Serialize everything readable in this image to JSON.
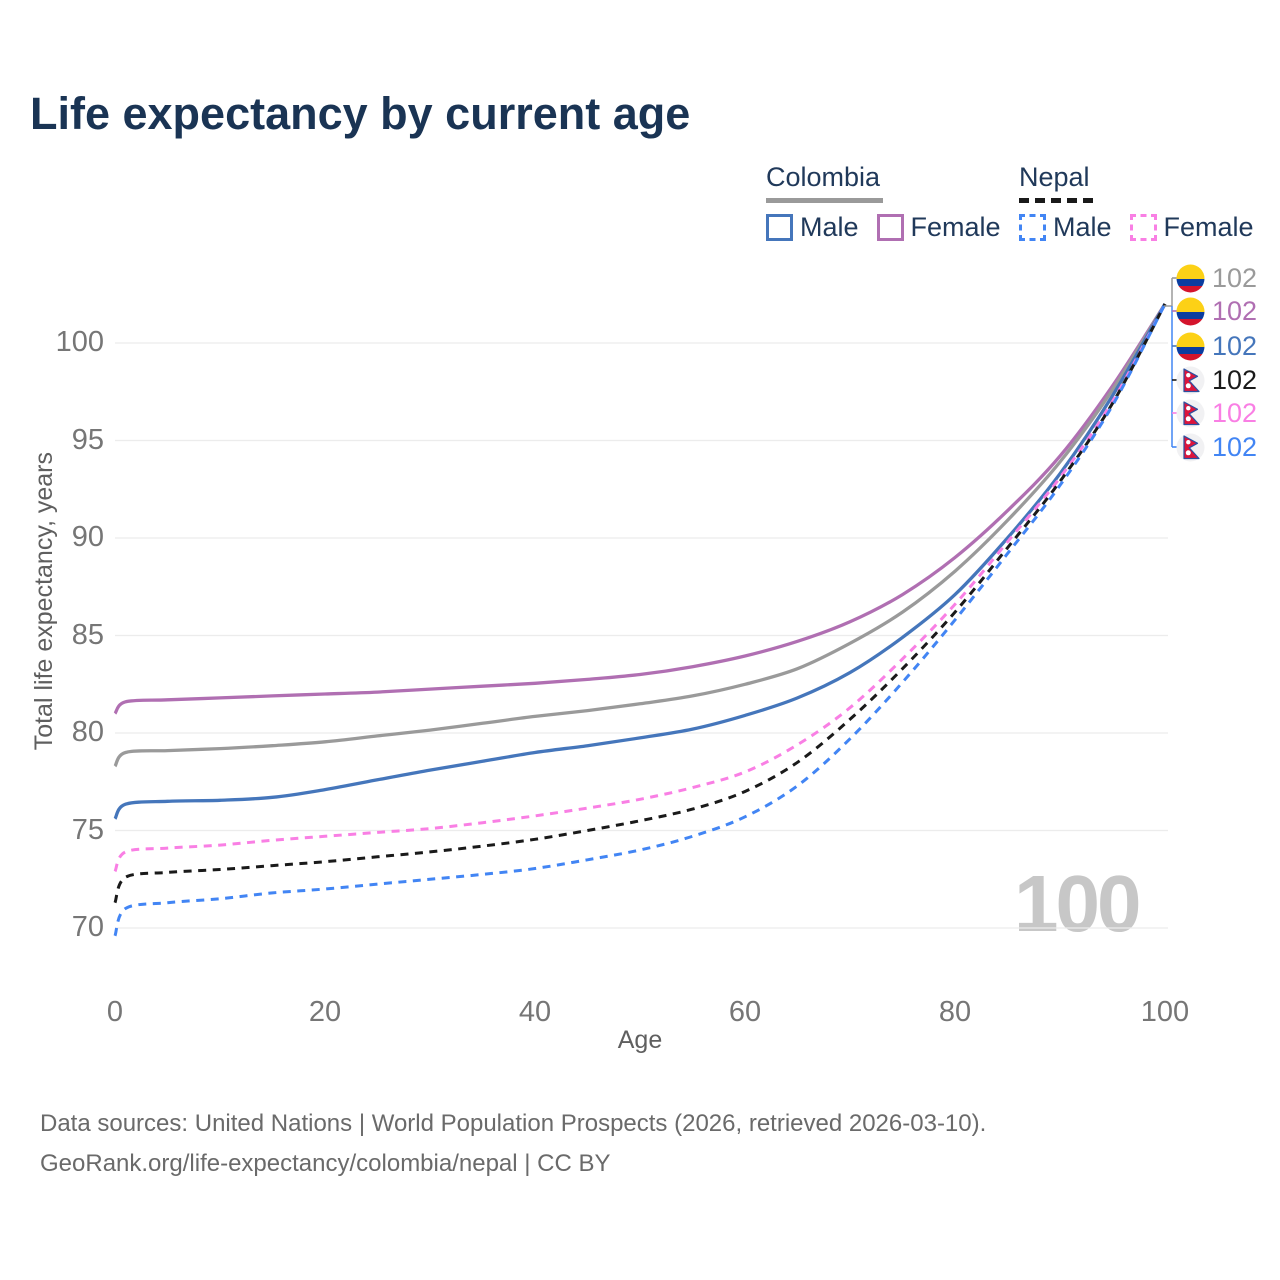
{
  "title": "Life expectancy by current age",
  "legend": {
    "groups": [
      {
        "label": "Colombia",
        "line_style": "solid",
        "underline_color": "#9a9a9a",
        "items": [
          {
            "label": "Male",
            "color": "#4576bb",
            "dashed": false
          },
          {
            "label": "Female",
            "color": "#b06fb2",
            "dashed": false
          }
        ]
      },
      {
        "label": "Nepal",
        "line_style": "dashed",
        "underline_color": "#1a1a1a",
        "items": [
          {
            "label": "Male",
            "color": "#4285f4",
            "dashed": true
          },
          {
            "label": "Female",
            "color": "#f97fe4",
            "dashed": true
          }
        ]
      }
    ]
  },
  "chart_data": {
    "type": "line",
    "title": "Life expectancy by current age",
    "xlabel": "Age",
    "ylabel": "Total life expectancy, years",
    "x_ticks": [
      0,
      20,
      40,
      60,
      80,
      100
    ],
    "y_ticks": [
      70,
      75,
      80,
      85,
      90,
      95,
      100
    ],
    "xlim": [
      0,
      100
    ],
    "ylim": [
      69.5,
      103
    ],
    "grid": "horizontal",
    "age_watermark": "100",
    "x": [
      0,
      1,
      5,
      10,
      15,
      20,
      25,
      30,
      35,
      40,
      45,
      50,
      55,
      60,
      65,
      70,
      75,
      80,
      85,
      90,
      95,
      100
    ],
    "series": [
      {
        "name": "Colombia Female",
        "country": "Colombia",
        "sex": "Female",
        "color": "#b06fb2",
        "dashed": false,
        "values": [
          81.0,
          81.6,
          81.7,
          81.8,
          81.9,
          82.0,
          82.1,
          82.25,
          82.4,
          82.55,
          82.75,
          83.0,
          83.4,
          83.95,
          84.7,
          85.7,
          87.1,
          89.0,
          91.4,
          94.2,
          97.8,
          102.0
        ]
      },
      {
        "name": "Colombia Both sexes",
        "country": "Colombia",
        "sex": "Both",
        "color": "#9a9a9a",
        "dashed": false,
        "values": [
          78.3,
          79.0,
          79.1,
          79.2,
          79.35,
          79.55,
          79.85,
          80.15,
          80.5,
          80.85,
          81.15,
          81.5,
          81.9,
          82.5,
          83.3,
          84.6,
          86.2,
          88.3,
          90.9,
          93.9,
          97.6,
          102.0
        ]
      },
      {
        "name": "Colombia Male",
        "country": "Colombia",
        "sex": "Male",
        "color": "#4576bb",
        "dashed": false,
        "values": [
          75.6,
          76.35,
          76.5,
          76.55,
          76.7,
          77.1,
          77.6,
          78.1,
          78.55,
          79.0,
          79.35,
          79.75,
          80.2,
          80.9,
          81.8,
          83.1,
          84.9,
          87.1,
          90.0,
          93.3,
          97.3,
          102.0
        ]
      },
      {
        "name": "Nepal Female",
        "country": "Nepal",
        "sex": "Female",
        "color": "#f97fe4",
        "dashed": true,
        "values": [
          72.9,
          73.9,
          74.1,
          74.25,
          74.5,
          74.7,
          74.9,
          75.1,
          75.4,
          75.75,
          76.15,
          76.6,
          77.2,
          78.0,
          79.4,
          81.3,
          83.8,
          86.6,
          89.8,
          93.1,
          97.0,
          102.0
        ]
      },
      {
        "name": "Nepal Both sexes",
        "country": "Nepal",
        "sex": "Both",
        "color": "#1a1a1a",
        "dashed": true,
        "values": [
          71.3,
          72.6,
          72.85,
          73.0,
          73.2,
          73.4,
          73.65,
          73.9,
          74.2,
          74.55,
          75.0,
          75.5,
          76.1,
          77.0,
          78.5,
          80.7,
          83.3,
          86.2,
          89.5,
          92.9,
          96.9,
          102.0
        ]
      },
      {
        "name": "Nepal Male",
        "country": "Nepal",
        "sex": "Male",
        "color": "#4285f4",
        "dashed": true,
        "values": [
          69.6,
          71.0,
          71.3,
          71.5,
          71.8,
          72.0,
          72.25,
          72.5,
          72.75,
          73.05,
          73.5,
          74.0,
          74.7,
          75.7,
          77.3,
          79.7,
          82.6,
          85.8,
          89.2,
          92.7,
          96.8,
          102.0
        ]
      }
    ],
    "end_labels": [
      {
        "flag": "colombia",
        "text": "102",
        "color": "#9a9a9a",
        "series": "Colombia Both sexes"
      },
      {
        "flag": "colombia",
        "text": "102",
        "color": "#b06fb2",
        "series": "Colombia Female"
      },
      {
        "flag": "colombia",
        "text": "102",
        "color": "#4576bb",
        "series": "Colombia Male"
      },
      {
        "flag": "nepal",
        "text": "102",
        "color": "#1a1a1a",
        "series": "Nepal Both sexes"
      },
      {
        "flag": "nepal",
        "text": "102",
        "color": "#f97fe4",
        "series": "Nepal Female"
      },
      {
        "flag": "nepal",
        "text": "102",
        "color": "#4285f4",
        "series": "Nepal Male"
      }
    ],
    "connector_colors": {
      "upper": "#9a9a9a",
      "lower": "#4285f4"
    },
    "gridline_color": "#ececec"
  },
  "footer": {
    "line1": "Data sources: United Nations | World Population Prospects (2026, retrieved 2026-03-10).",
    "line2": "GeoRank.org/life-expectancy/colombia/nepal | CC BY"
  }
}
